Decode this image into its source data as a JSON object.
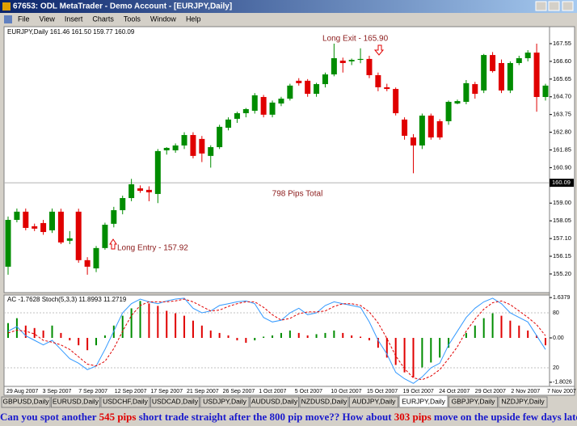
{
  "window": {
    "title": "67653: ODL MetaTrader - Demo Account - [EURJPY,Daily]",
    "menu": [
      "File",
      "View",
      "Insert",
      "Charts",
      "Tools",
      "Window",
      "Help"
    ],
    "tabs": [
      "GBPUSD,Daily",
      "EURUSD,Daily",
      "USDCHF,Daily",
      "USDCAD,Daily",
      "USDJPY,Daily",
      "AUDUSD,Daily",
      "NZDUSD,Daily",
      "AUDJPY,Daily",
      "EURJPY,Daily",
      "GBPJPY,Daily",
      "NZDJPY,Daily"
    ],
    "active_tab": 8
  },
  "chart_data": [
    {
      "type": "candlestick",
      "header": "EURJPY,Daily  161.46 161.50 159.77 160.09",
      "annotations": [
        "Long Exit - 165.90",
        "798 Pips Total",
        "Long Entry - 157.92"
      ],
      "up_color": "#008c00",
      "down_color": "#e00000",
      "ylim": [
        154.2,
        168.46
      ],
      "yticks": [
        167.55,
        {
          "value": 166.6,
          "label": "166.60"
        },
        165.65,
        {
          "value": 164.7,
          "label": "164.70"
        },
        163.75,
        {
          "value": 162.8,
          "label": "162.80"
        },
        161.85,
        {
          "value": 160.9,
          "label": "160.90"
        },
        {
          "value": 159,
          "label": "159.00"
        },
        158.05,
        {
          "value": 157.1,
          "label": "157.10"
        },
        156.15,
        {
          "value": 155.2,
          "label": "155.20"
        }
      ],
      "last_price": 160.09,
      "candles": [
        [
          155.59,
          158.28,
          155.16,
          158.1
        ],
        [
          158.1,
          158.71,
          157.97,
          158.54
        ],
        [
          158.54,
          158.71,
          157.54,
          157.67
        ],
        [
          157.76,
          157.9,
          157.5,
          157.63
        ],
        [
          157.93,
          158.1,
          157.3,
          157.45
        ],
        [
          157.54,
          158.71,
          157.4,
          158.54
        ],
        [
          158.54,
          158.7,
          156.8,
          156.89
        ],
        [
          156.98,
          157.5,
          156.8,
          157.11
        ],
        [
          158.54,
          158.7,
          155.8,
          155.94
        ],
        [
          155.94,
          156.1,
          155.16,
          155.59
        ],
        [
          155.5,
          156.7,
          155.3,
          156.59
        ],
        [
          156.59,
          157.95,
          156.5,
          157.84
        ],
        [
          157.89,
          158.8,
          157.7,
          158.62
        ],
        [
          158.62,
          159.4,
          158.4,
          159.27
        ],
        [
          159.27,
          160.3,
          159.1,
          160.01
        ],
        [
          159.79,
          159.95,
          159.55,
          159.66
        ],
        [
          159.71,
          159.9,
          159.1,
          159.58
        ],
        [
          159.49,
          161.9,
          159.0,
          161.79
        ],
        [
          161.83,
          162.0,
          161.6,
          161.96
        ],
        [
          161.83,
          162.2,
          161.7,
          162.09
        ],
        [
          162.09,
          162.8,
          161.9,
          162.65
        ],
        [
          162.65,
          162.8,
          161.4,
          161.53
        ],
        [
          162.44,
          162.6,
          161.2,
          161.66
        ],
        [
          161.53,
          162.1,
          160.9,
          162.0
        ],
        [
          162.0,
          163.2,
          161.9,
          163.09
        ],
        [
          163.04,
          163.6,
          162.9,
          163.48
        ],
        [
          163.52,
          163.9,
          163.3,
          163.82
        ],
        [
          163.82,
          164.1,
          163.6,
          164.04
        ],
        [
          163.95,
          164.9,
          163.8,
          164.78
        ],
        [
          164.69,
          164.8,
          163.6,
          163.74
        ],
        [
          163.74,
          164.5,
          163.6,
          164.39
        ],
        [
          164.34,
          164.7,
          164.2,
          164.6
        ],
        [
          164.6,
          165.4,
          164.5,
          165.3
        ],
        [
          165.56,
          165.7,
          165.3,
          165.43
        ],
        [
          165.56,
          165.65,
          164.7,
          164.86
        ],
        [
          164.86,
          165.45,
          164.7,
          165.38
        ],
        [
          165.38,
          166.0,
          165.2,
          165.9
        ],
        [
          165.9,
          167.55,
          165.8,
          166.77
        ],
        [
          166.64,
          166.8,
          166.0,
          166.51
        ],
        [
          166.6,
          166.75,
          166.4,
          166.68
        ],
        [
          166.68,
          167.3,
          166.5,
          166.73
        ],
        [
          166.73,
          166.9,
          165.7,
          165.86
        ],
        [
          165.86,
          166.0,
          165.0,
          165.21
        ],
        [
          165.21,
          165.4,
          165.0,
          165.12
        ],
        [
          165.12,
          165.2,
          163.7,
          163.82
        ],
        [
          163.48,
          163.6,
          162.4,
          162.61
        ],
        [
          162.52,
          162.7,
          160.6,
          162.09
        ],
        [
          162.09,
          163.8,
          161.9,
          163.69
        ],
        [
          163.69,
          163.8,
          162.4,
          162.52
        ],
        [
          163.39,
          163.5,
          162.4,
          162.52
        ],
        [
          163.39,
          164.5,
          163.2,
          164.43
        ],
        [
          164.34,
          164.55,
          164.3,
          164.47
        ],
        [
          164.43,
          165.6,
          164.3,
          165.43
        ],
        [
          165.38,
          165.5,
          164.6,
          164.86
        ],
        [
          165.04,
          167.0,
          164.9,
          166.94
        ],
        [
          166.94,
          167.1,
          166.0,
          166.08
        ],
        [
          166.51,
          166.7,
          164.9,
          165.04
        ],
        [
          165.04,
          166.6,
          164.9,
          166.51
        ],
        [
          166.51,
          166.9,
          166.4,
          166.77
        ],
        [
          166.77,
          167.2,
          166.6,
          167.07
        ],
        [
          167.07,
          167.55,
          163.9,
          164.69
        ],
        [
          164.69,
          165.4,
          164.5,
          165.3
        ]
      ]
    },
    {
      "type": "indicator",
      "header": "AC -1.7628 Stoch(5,3,3) 11.8993 11.2719",
      "ylim": [
        -1.97,
        1.74
      ],
      "yticks": [
        1.6379,
        {
          "value": 0,
          "label": "0.00"
        },
        -1.8026
      ],
      "up_color": "#008c00",
      "down_color": "#e00000",
      "ac_values": [
        0.6,
        0.8,
        0.5,
        0.4,
        0.3,
        0.5,
        0.2,
        -0.1,
        -0.3,
        -0.5,
        -0.3,
        0.1,
        0.5,
        0.9,
        1.2,
        1.5,
        1.4,
        1.3,
        1.1,
        1.0,
        0.9,
        0.7,
        0.5,
        0.3,
        0.2,
        0.1,
        -0.1,
        -0.2,
        -0.1,
        0.05,
        0.1,
        0.2,
        0.3,
        0.2,
        0.1,
        0.15,
        0.2,
        0.3,
        0.2,
        0.1,
        0.05,
        -0.1,
        -0.4,
        -0.8,
        -1.1,
        -1.4,
        -1.6,
        -1.2,
        -1.0,
        -0.8,
        -0.4,
        0.0,
        0.2,
        0.5,
        0.8,
        1.0,
        0.9,
        0.7,
        0.5,
        0.3,
        0.1,
        -0.3
      ],
      "y2lim": [
        -0.3,
        99.4
      ],
      "y2ticks": [
        80,
        20
      ],
      "main_color": "#3399ff",
      "signal_color": "#e00000",
      "stoch_main": [
        60,
        65,
        55,
        50,
        45,
        50,
        40,
        30,
        25,
        18,
        22,
        40,
        60,
        80,
        90,
        95,
        92,
        90,
        93,
        95,
        96,
        85,
        80,
        82,
        88,
        90,
        92,
        93,
        90,
        75,
        70,
        72,
        80,
        85,
        78,
        80,
        88,
        92,
        90,
        88,
        86,
        70,
        50,
        35,
        15,
        8,
        3,
        10,
        20,
        25,
        45,
        60,
        75,
        85,
        92,
        96,
        90,
        80,
        75,
        70,
        55,
        40
      ],
      "stoch_signal": [
        58,
        61,
        60,
        57,
        50,
        48,
        45,
        40,
        32,
        24,
        22,
        27,
        41,
        60,
        77,
        88,
        92,
        92,
        92,
        93,
        95,
        92,
        87,
        82,
        83,
        87,
        90,
        92,
        92,
        86,
        78,
        72,
        74,
        79,
        81,
        81,
        82,
        87,
        90,
        90,
        88,
        81,
        69,
        52,
        33,
        19,
        9,
        7,
        11,
        18,
        30,
        43,
        60,
        73,
        84,
        91,
        93,
        89,
        82,
        75,
        67,
        55
      ],
      "date_labels": [
        "29 Aug 2007",
        "3 Sep 2007",
        "7 Sep 2007",
        "12 Sep 2007",
        "17 Sep 2007",
        "21 Sep 2007",
        "26 Sep 2007",
        "1 Oct 2007",
        "5 Oct 2007",
        "10 Oct 2007",
        "15 Oct 2007",
        "19 Oct 2007",
        "24 Oct 2007",
        "29 Oct 2007",
        "2 Nov 2007",
        "7 Nov 2007"
      ]
    }
  ],
  "caption": {
    "lines": [
      [
        {
          "text": "Can you spot another ",
          "color": "#1a1acc"
        },
        {
          "text": "545 pips",
          "color": "#e00000"
        },
        {
          "text": " short trade straight after the 800 pip move?? How about ",
          "color": "#1a1acc"
        },
        {
          "text": "303 pips",
          "color": "#e00000"
        },
        {
          "text": " move on the upside few days later??",
          "color": "#1a1acc"
        }
      ],
      [
        {
          "text": "8-)",
          "color": "#1a1acc"
        }
      ]
    ]
  }
}
